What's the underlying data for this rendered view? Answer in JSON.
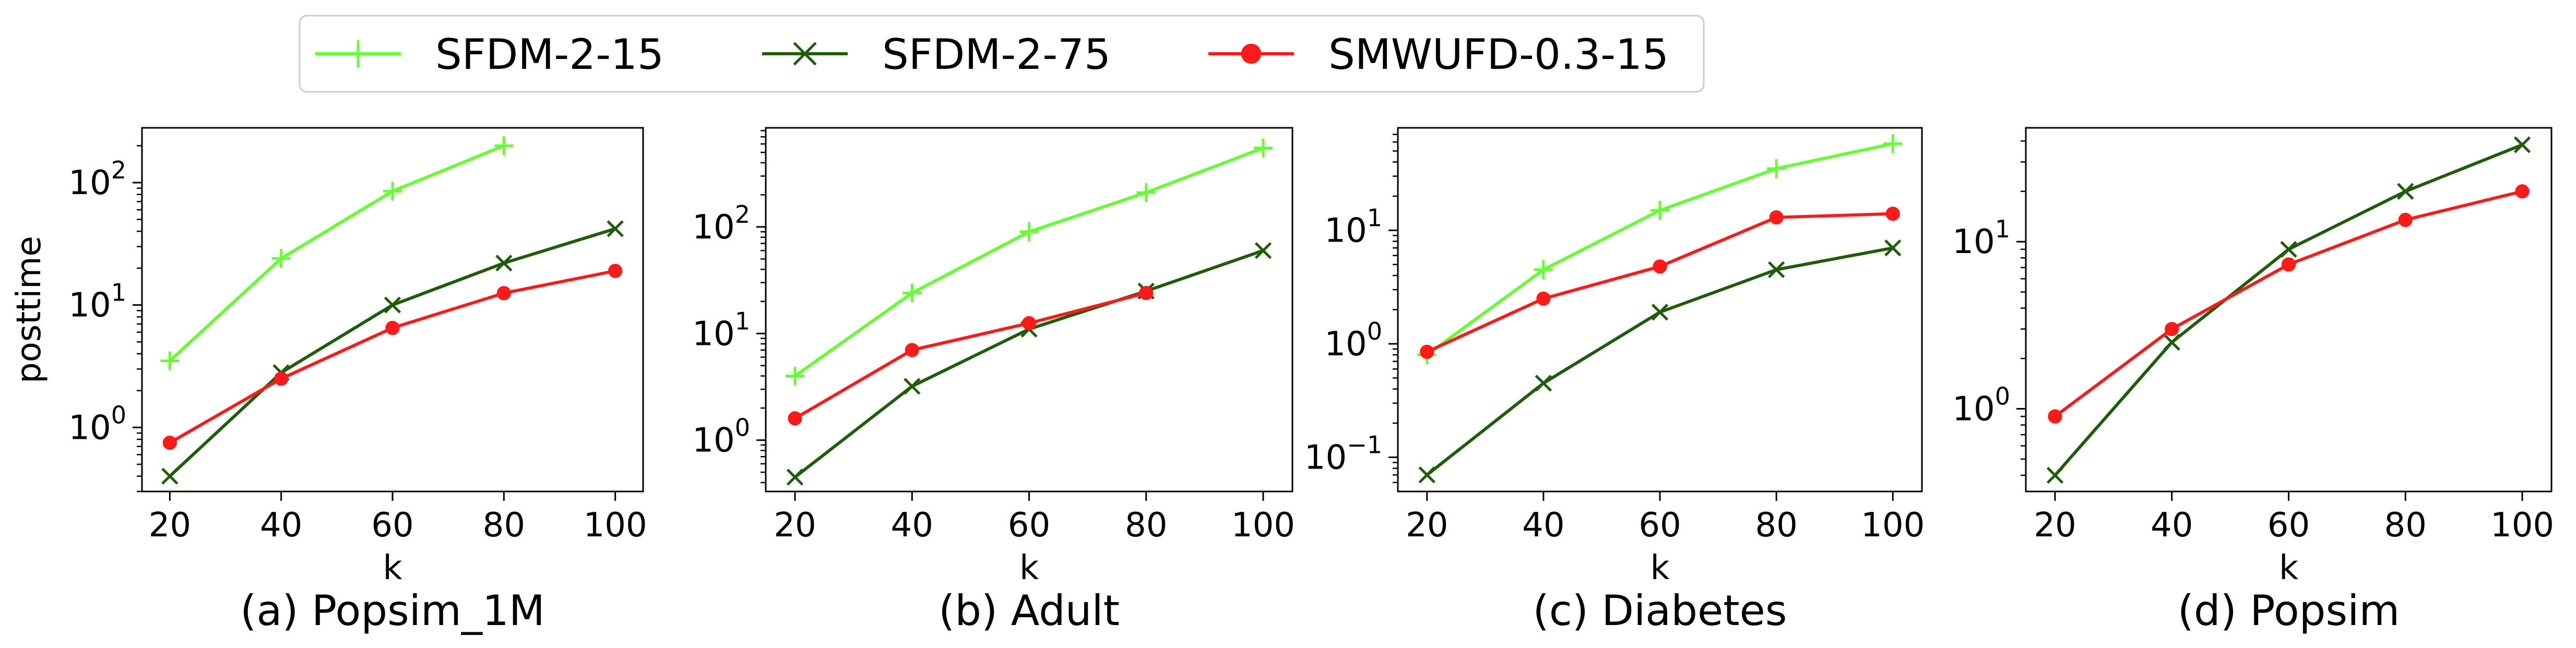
{
  "legend": {
    "entries": [
      {
        "label": "SFDM-2-15",
        "color": "#66ff33",
        "marker": "plus"
      },
      {
        "label": "SFDM-2-75",
        "color": "#1f5c0a",
        "marker": "x"
      },
      {
        "label": "SMWUFD-0.3-15",
        "color": "#ff1a1a",
        "marker": "circle"
      }
    ]
  },
  "chart_data": [
    {
      "type": "line",
      "caption": "(a) Popsim_1M",
      "xlabel": "k",
      "ylabel": "posttime",
      "yscale": "log",
      "xlim": [
        15,
        105
      ],
      "ylim": [
        0.3,
        280
      ],
      "xticks": [
        20,
        40,
        60,
        80,
        100
      ],
      "xtick_labels": [
        "20",
        "40",
        "60",
        "80",
        "100"
      ],
      "yticks": [
        1,
        10,
        100
      ],
      "ytick_labels": [
        "10^0",
        "10^1",
        "10^2"
      ],
      "x": [
        20,
        40,
        60,
        80,
        100
      ],
      "series": [
        {
          "name": "SFDM-2-15",
          "values": [
            3.5,
            24,
            85,
            200,
            null
          ]
        },
        {
          "name": "SFDM-2-75",
          "values": [
            0.4,
            2.8,
            10,
            22,
            42
          ]
        },
        {
          "name": "SMWUFD-0.3-15",
          "values": [
            0.75,
            2.5,
            6.5,
            12.5,
            19
          ]
        }
      ]
    },
    {
      "type": "line",
      "caption": "(b) Adult",
      "xlabel": "k",
      "ylabel": "",
      "yscale": "log",
      "xlim": [
        15,
        105
      ],
      "ylim": [
        0.33,
        850
      ],
      "xticks": [
        20,
        40,
        60,
        80,
        100
      ],
      "xtick_labels": [
        "20",
        "40",
        "60",
        "80",
        "100"
      ],
      "yticks": [
        1,
        10,
        100
      ],
      "ytick_labels": [
        "10^0",
        "10^1",
        "10^2"
      ],
      "x": [
        20,
        40,
        60,
        80,
        100
      ],
      "series": [
        {
          "name": "SFDM-2-15",
          "values": [
            4,
            24,
            90,
            210,
            550
          ]
        },
        {
          "name": "SFDM-2-75",
          "values": [
            0.45,
            3.2,
            11,
            25,
            60
          ]
        },
        {
          "name": "SMWUFD-0.3-15",
          "values": [
            1.6,
            7,
            12.5,
            24,
            null
          ]
        }
      ]
    },
    {
      "type": "line",
      "caption": "(c) Diabetes",
      "xlabel": "k",
      "ylabel": "",
      "yscale": "log",
      "xlim": [
        15,
        105
      ],
      "ylim": [
        0.05,
        80
      ],
      "xticks": [
        20,
        40,
        60,
        80,
        100
      ],
      "xtick_labels": [
        "20",
        "40",
        "60",
        "80",
        "100"
      ],
      "yticks": [
        0.1,
        1,
        10
      ],
      "ytick_labels": [
        "10^-1",
        "10^0",
        "10^1"
      ],
      "x": [
        20,
        40,
        60,
        80,
        100
      ],
      "series": [
        {
          "name": "SFDM-2-15",
          "values": [
            0.8,
            4.5,
            15,
            35,
            58
          ]
        },
        {
          "name": "SFDM-2-75",
          "values": [
            0.07,
            0.45,
            1.9,
            4.5,
            7
          ]
        },
        {
          "name": "SMWUFD-0.3-15",
          "values": [
            0.85,
            2.5,
            4.8,
            13,
            14
          ]
        }
      ]
    },
    {
      "type": "line",
      "caption": "(d) Popsim",
      "xlabel": "k",
      "ylabel": "",
      "yscale": "log",
      "xlim": [
        15,
        105
      ],
      "ylim": [
        0.32,
        48
      ],
      "xticks": [
        20,
        40,
        60,
        80,
        100
      ],
      "xtick_labels": [
        "20",
        "40",
        "60",
        "80",
        "100"
      ],
      "yticks": [
        1,
        10
      ],
      "ytick_labels": [
        "10^0",
        "10^1"
      ],
      "x": [
        20,
        40,
        60,
        80,
        100
      ],
      "series": [
        {
          "name": "SFDM-2-75",
          "values": [
            0.4,
            2.5,
            9,
            20,
            38
          ]
        },
        {
          "name": "SMWUFD-0.3-15",
          "values": [
            0.9,
            3,
            7.3,
            13.5,
            20
          ]
        }
      ]
    }
  ]
}
